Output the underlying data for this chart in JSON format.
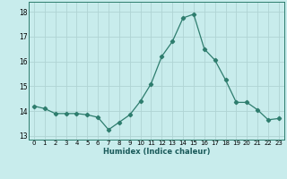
{
  "x": [
    0,
    1,
    2,
    3,
    4,
    5,
    6,
    7,
    8,
    9,
    10,
    11,
    12,
    13,
    14,
    15,
    16,
    17,
    18,
    19,
    20,
    21,
    22,
    23
  ],
  "y": [
    14.2,
    14.1,
    13.9,
    13.9,
    13.9,
    13.85,
    13.75,
    13.25,
    13.55,
    13.85,
    14.4,
    15.1,
    16.2,
    16.8,
    17.75,
    17.9,
    16.5,
    16.05,
    15.25,
    14.35,
    14.35,
    14.05,
    13.65,
    13.7
  ],
  "line_color": "#2e7d6e",
  "marker": "D",
  "marker_size": 2.2,
  "bg_color": "#c8ecec",
  "grid_color": "#afd4d4",
  "xlabel": "Humidex (Indice chaleur)",
  "ylim": [
    12.85,
    18.4
  ],
  "xlim": [
    -0.5,
    23.5
  ],
  "yticks": [
    13,
    14,
    15,
    16,
    17,
    18
  ],
  "xticks": [
    0,
    1,
    2,
    3,
    4,
    5,
    6,
    7,
    8,
    9,
    10,
    11,
    12,
    13,
    14,
    15,
    16,
    17,
    18,
    19,
    20,
    21,
    22,
    23
  ]
}
